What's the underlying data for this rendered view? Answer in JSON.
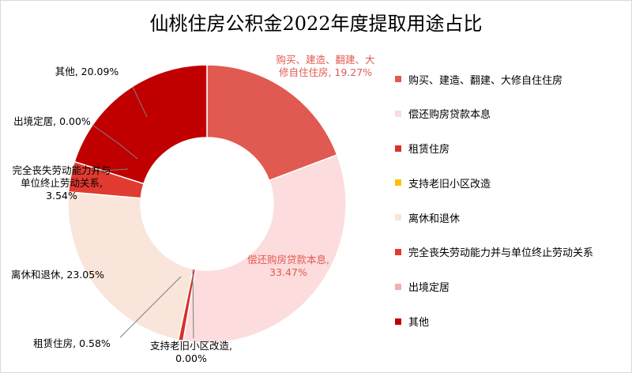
{
  "chart_data": {
    "type": "pie",
    "donut": true,
    "title": "仙桃住房公积金2022年度提取用途占比",
    "categories": [
      "购买、建造、翻建、大修自住住房",
      "偿还购房贷款本息",
      "租赁住房",
      "支持老旧小区改造",
      "离休和退休",
      "完全丧失劳动能力并与单位终止劳动关系",
      "出境定居",
      "其他"
    ],
    "values": [
      19.27,
      33.47,
      0.58,
      0.0,
      23.05,
      3.54,
      0.0,
      20.09
    ],
    "colors": [
      "#e05a51",
      "#fcdcdc",
      "#d8312e",
      "#ffc000",
      "#f9e5da",
      "#e03a31",
      "#f5aeae",
      "#c00000"
    ],
    "data_labels": [
      [
        "购买、建造、翻建、大",
        "修自住住房, 19.27%"
      ],
      [
        "偿还购房贷款本息,",
        "33.47%"
      ],
      [
        "租赁住房, 0.58%"
      ],
      [
        "支持老旧小区改造,",
        "0.00%"
      ],
      [
        "离休和退休, 23.05%"
      ],
      [
        "完全丧失劳动能力并与",
        "单位终止劳动关系,",
        "3.54%"
      ],
      [
        "出境定居, 0.00%"
      ],
      [
        "其他, 20.09%"
      ]
    ],
    "legend_position": "right"
  }
}
